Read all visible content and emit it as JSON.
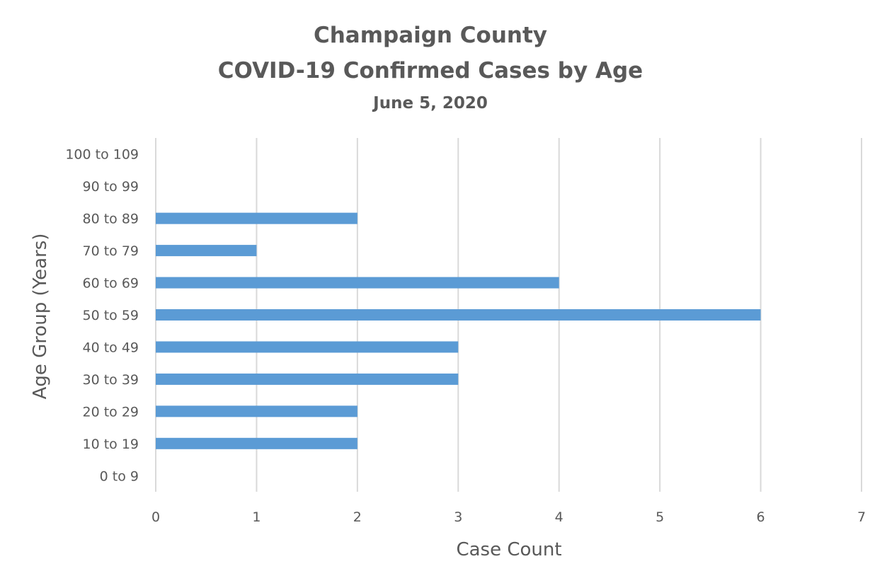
{
  "chart_data": {
    "type": "bar",
    "orientation": "horizontal",
    "title": "Champaign County",
    "subtitle": "COVID-19 Confirmed Cases by Age",
    "date": "June 5, 2020",
    "xlabel": "Case Count",
    "ylabel": "Age Group (Years)",
    "xlim": [
      0,
      7
    ],
    "xticks": [
      "0",
      "1",
      "2",
      "3",
      "4",
      "5",
      "6",
      "7"
    ],
    "categories": [
      "0 to 9",
      "10 to 19",
      "20 to 29",
      "30 to 39",
      "40 to 49",
      "50 to 59",
      "60 to 69",
      "70 to 79",
      "80 to 89",
      "90 to 99",
      "100 to 109"
    ],
    "values": [
      0,
      2,
      2,
      3,
      3,
      6,
      4,
      1,
      2,
      0,
      0
    ],
    "bar_color": "#5b9bd5",
    "grid": true,
    "gridline_color": "#d9d9d9"
  }
}
